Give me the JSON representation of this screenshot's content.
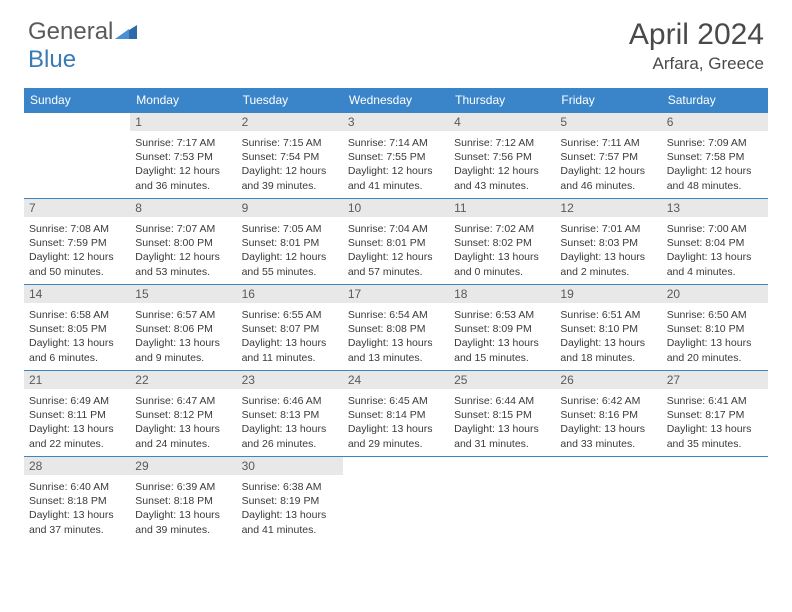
{
  "brand": {
    "part1": "General",
    "part2": "Blue"
  },
  "title": "April 2024",
  "location": "Arfara, Greece",
  "colors": {
    "header_bg": "#3a85c9",
    "header_text": "#ffffff",
    "daynum_bg": "#e8e8e8",
    "text": "#3a3a3a",
    "border": "#3a85c9"
  },
  "weekdays": [
    "Sunday",
    "Monday",
    "Tuesday",
    "Wednesday",
    "Thursday",
    "Friday",
    "Saturday"
  ],
  "weeks": [
    [
      {
        "empty": true
      },
      {
        "n": "1",
        "sr": "7:17 AM",
        "ss": "7:53 PM",
        "dl": "12 hours and 36 minutes."
      },
      {
        "n": "2",
        "sr": "7:15 AM",
        "ss": "7:54 PM",
        "dl": "12 hours and 39 minutes."
      },
      {
        "n": "3",
        "sr": "7:14 AM",
        "ss": "7:55 PM",
        "dl": "12 hours and 41 minutes."
      },
      {
        "n": "4",
        "sr": "7:12 AM",
        "ss": "7:56 PM",
        "dl": "12 hours and 43 minutes."
      },
      {
        "n": "5",
        "sr": "7:11 AM",
        "ss": "7:57 PM",
        "dl": "12 hours and 46 minutes."
      },
      {
        "n": "6",
        "sr": "7:09 AM",
        "ss": "7:58 PM",
        "dl": "12 hours and 48 minutes."
      }
    ],
    [
      {
        "n": "7",
        "sr": "7:08 AM",
        "ss": "7:59 PM",
        "dl": "12 hours and 50 minutes."
      },
      {
        "n": "8",
        "sr": "7:07 AM",
        "ss": "8:00 PM",
        "dl": "12 hours and 53 minutes."
      },
      {
        "n": "9",
        "sr": "7:05 AM",
        "ss": "8:01 PM",
        "dl": "12 hours and 55 minutes."
      },
      {
        "n": "10",
        "sr": "7:04 AM",
        "ss": "8:01 PM",
        "dl": "12 hours and 57 minutes."
      },
      {
        "n": "11",
        "sr": "7:02 AM",
        "ss": "8:02 PM",
        "dl": "13 hours and 0 minutes."
      },
      {
        "n": "12",
        "sr": "7:01 AM",
        "ss": "8:03 PM",
        "dl": "13 hours and 2 minutes."
      },
      {
        "n": "13",
        "sr": "7:00 AM",
        "ss": "8:04 PM",
        "dl": "13 hours and 4 minutes."
      }
    ],
    [
      {
        "n": "14",
        "sr": "6:58 AM",
        "ss": "8:05 PM",
        "dl": "13 hours and 6 minutes."
      },
      {
        "n": "15",
        "sr": "6:57 AM",
        "ss": "8:06 PM",
        "dl": "13 hours and 9 minutes."
      },
      {
        "n": "16",
        "sr": "6:55 AM",
        "ss": "8:07 PM",
        "dl": "13 hours and 11 minutes."
      },
      {
        "n": "17",
        "sr": "6:54 AM",
        "ss": "8:08 PM",
        "dl": "13 hours and 13 minutes."
      },
      {
        "n": "18",
        "sr": "6:53 AM",
        "ss": "8:09 PM",
        "dl": "13 hours and 15 minutes."
      },
      {
        "n": "19",
        "sr": "6:51 AM",
        "ss": "8:10 PM",
        "dl": "13 hours and 18 minutes."
      },
      {
        "n": "20",
        "sr": "6:50 AM",
        "ss": "8:10 PM",
        "dl": "13 hours and 20 minutes."
      }
    ],
    [
      {
        "n": "21",
        "sr": "6:49 AM",
        "ss": "8:11 PM",
        "dl": "13 hours and 22 minutes."
      },
      {
        "n": "22",
        "sr": "6:47 AM",
        "ss": "8:12 PM",
        "dl": "13 hours and 24 minutes."
      },
      {
        "n": "23",
        "sr": "6:46 AM",
        "ss": "8:13 PM",
        "dl": "13 hours and 26 minutes."
      },
      {
        "n": "24",
        "sr": "6:45 AM",
        "ss": "8:14 PM",
        "dl": "13 hours and 29 minutes."
      },
      {
        "n": "25",
        "sr": "6:44 AM",
        "ss": "8:15 PM",
        "dl": "13 hours and 31 minutes."
      },
      {
        "n": "26",
        "sr": "6:42 AM",
        "ss": "8:16 PM",
        "dl": "13 hours and 33 minutes."
      },
      {
        "n": "27",
        "sr": "6:41 AM",
        "ss": "8:17 PM",
        "dl": "13 hours and 35 minutes."
      }
    ],
    [
      {
        "n": "28",
        "sr": "6:40 AM",
        "ss": "8:18 PM",
        "dl": "13 hours and 37 minutes."
      },
      {
        "n": "29",
        "sr": "6:39 AM",
        "ss": "8:18 PM",
        "dl": "13 hours and 39 minutes."
      },
      {
        "n": "30",
        "sr": "6:38 AM",
        "ss": "8:19 PM",
        "dl": "13 hours and 41 minutes."
      },
      {
        "empty": true
      },
      {
        "empty": true
      },
      {
        "empty": true
      },
      {
        "empty": true
      }
    ]
  ],
  "labels": {
    "sunrise": "Sunrise:",
    "sunset": "Sunset:",
    "daylight": "Daylight:"
  }
}
